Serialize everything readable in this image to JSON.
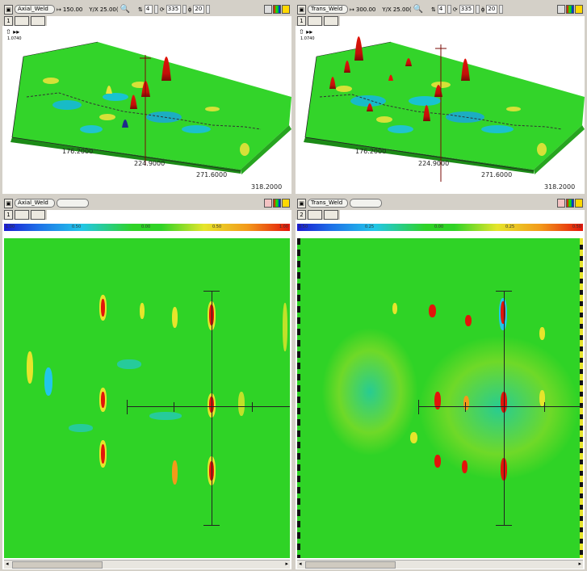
{
  "panels": {
    "top_left": {
      "scan_name": "Axial_Weld",
      "pixel_value": "150.00",
      "yx_label": "Y/X",
      "yx_value": "25.00(",
      "spin1_value": "4",
      "spin2_value": "335",
      "spin3_value": "20",
      "tab_number": "1",
      "axis_ticks": [
        "176.2000",
        "224.9000",
        "271.6000",
        "318.2000"
      ],
      "axis_corner": "1.0740"
    },
    "top_right": {
      "scan_name": "Trans_Weld",
      "pixel_value": "300.00",
      "yx_label": "Y/X",
      "yx_value": "25.00(",
      "spin1_value": "4",
      "spin2_value": "335",
      "spin3_value": "20",
      "tab_number": "1",
      "axis_ticks": [
        "176.2000",
        "224.9000",
        "271.6000",
        "318.2000"
      ],
      "axis_corner": "1.0740"
    },
    "bottom_left": {
      "scan_name": "Axial_Weld",
      "tab_number": "1",
      "colorbar_labels": [
        "1.00",
        "0.50",
        "0.00",
        "0.50",
        "1.00"
      ]
    },
    "bottom_right": {
      "scan_name": "Trans_Weld",
      "tab_number": "2",
      "colorbar_labels": [
        "0.50",
        "0.25",
        "0.00",
        "0.25",
        "0.50"
      ]
    }
  },
  "colors": {
    "background_green": "#2fd326",
    "peak_red": "#e3140a",
    "toolbar_gray": "#d4d0c8"
  }
}
